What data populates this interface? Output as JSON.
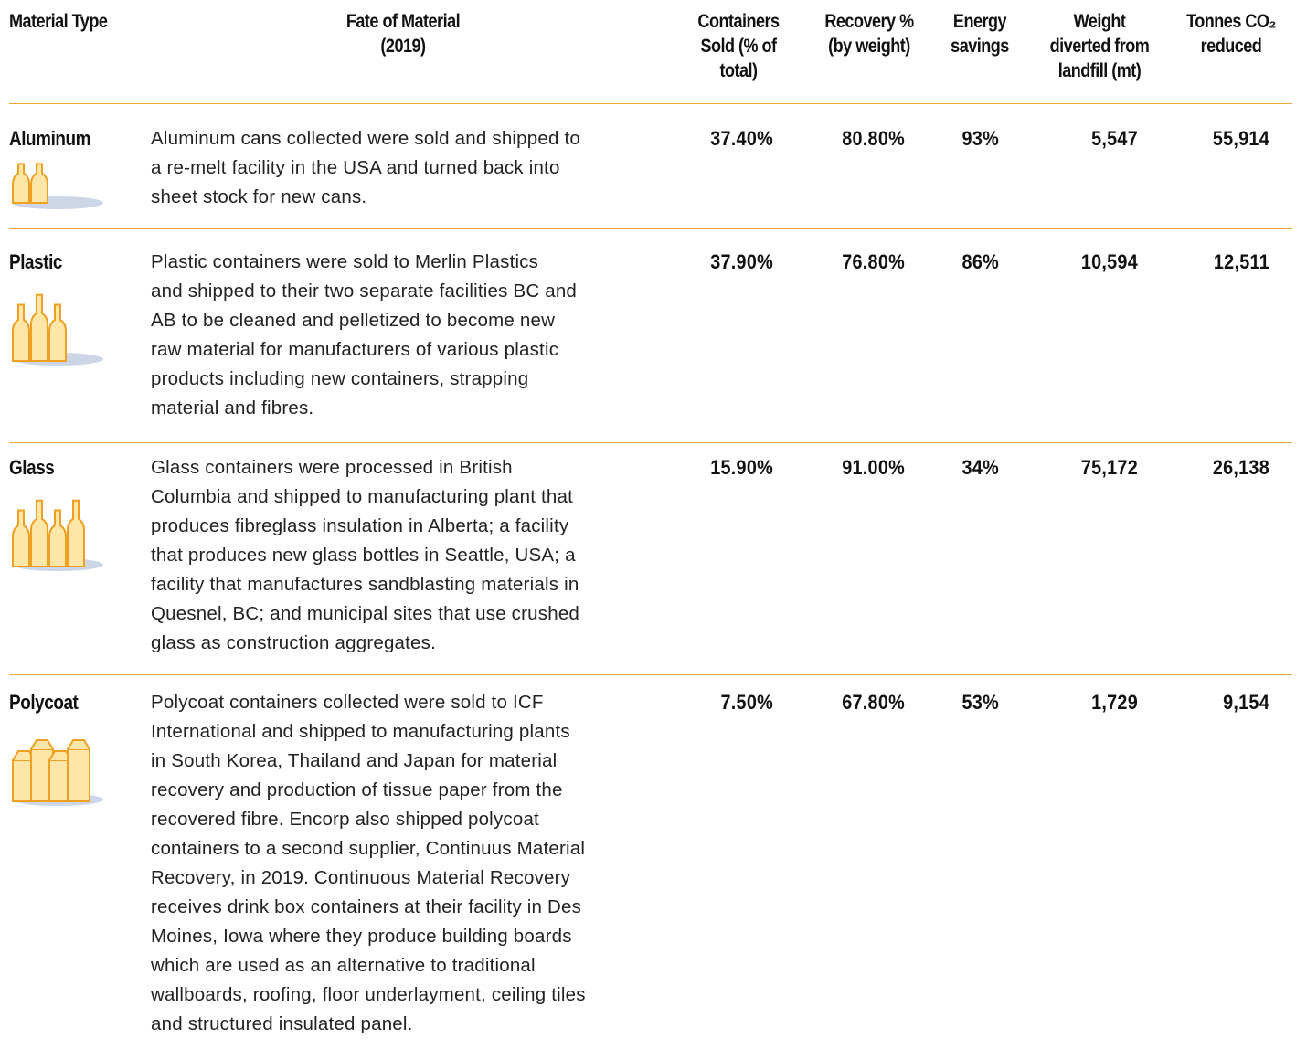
{
  "table": {
    "headers": [
      [
        "Material Type"
      ],
      [
        "Fate of Material",
        "(2019)"
      ],
      [
        "Containers",
        "Sold (% of",
        "total)"
      ],
      [
        "Recovery %",
        "(by weight)"
      ],
      [
        "Energy",
        "savings"
      ],
      [
        "Weight",
        "diverted from",
        "landfill (mt)"
      ],
      [
        "Tonnes CO₂",
        "reduced"
      ]
    ],
    "rows": [
      {
        "material": "Aluminum",
        "fate": [
          "Aluminum cans collected were sold and shipped to",
          "a re-melt facility in the USA and turned back into",
          "sheet stock for new cans."
        ],
        "values": [
          "37.40%",
          "80.80%",
          "93%",
          "5,547",
          "55,914"
        ]
      },
      {
        "material": "Plastic",
        "fate": [
          "Plastic containers were sold to Merlin Plastics",
          "and shipped to their two separate facilities BC and",
          "AB to be cleaned and pelletized to become new",
          "raw material for manufacturers of various plastic",
          "products including new containers, strapping",
          "material and fibres."
        ],
        "values": [
          "37.90%",
          "76.80%",
          "86%",
          "10,594",
          "12,511"
        ]
      },
      {
        "material": "Glass",
        "fate": [
          "Glass containers were processed in British",
          "Columbia and shipped to manufacturing plant that",
          "produces fibreglass insulation in Alberta; a facility",
          "that produces new glass bottles in Seattle, USA; a",
          "facility that manufactures sandblasting materials in",
          "Quesnel, BC; and municipal sites that use crushed",
          "glass as construction aggregates."
        ],
        "values": [
          "15.90%",
          "91.00%",
          "34%",
          "75,172",
          "26,138"
        ]
      },
      {
        "material": "Polycoat",
        "fate": [
          "Polycoat containers collected were sold to ICF",
          "International and shipped to manufacturing plants",
          "in South Korea, Thailand and Japan for material",
          "recovery and production of tissue paper from the",
          "recovered fibre. Encorp also shipped polycoat",
          "containers to a second supplier, Continuus Material",
          "Recovery, in 2019. Continuous Material Recovery",
          "receives drink box containers at their facility in Des",
          "Moines, Iowa where they produce building boards",
          "which are used as an alternative to traditional",
          "wallboards, roofing, floor underlayment, ceiling tiles",
          "and structured insulated panel."
        ],
        "values": [
          "7.50%",
          "67.80%",
          "53%",
          "1,729",
          "9,154"
        ]
      }
    ]
  }
}
